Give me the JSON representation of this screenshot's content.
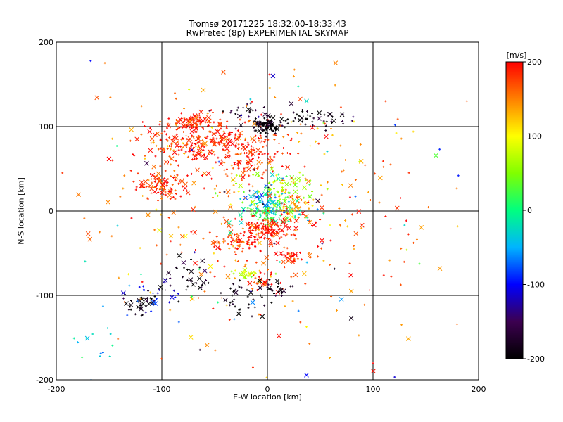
{
  "chart_data": {
    "type": "scatter",
    "title": "Tromsø 20171225 18:32:00-18:33:43",
    "subtitle": "RwPretec (8p) EXPERIMENTAL SKYMAP",
    "xlabel": "E-W location [km]",
    "ylabel": "N-S location [km]",
    "xlim": [
      -200,
      200
    ],
    "ylim": [
      -200,
      200
    ],
    "xticks": [
      "-200",
      "-100",
      "0",
      "100",
      "200"
    ],
    "yticks": [
      "-200",
      "-100",
      "0",
      "100",
      "200"
    ],
    "grid": true,
    "grid_lines_x": [
      -100,
      0,
      100
    ],
    "grid_lines_y": [
      -100,
      0,
      100
    ],
    "markers": [
      "+",
      "x"
    ],
    "colorbar": {
      "label": "[m/s]",
      "range": [
        -200,
        200
      ],
      "ticks": [
        "200",
        "100",
        "0",
        "-100",
        "-200"
      ],
      "colormap": [
        "#000000",
        "#3c0050",
        "#0000ff",
        "#00b4ff",
        "#00ff80",
        "#80ff00",
        "#ffff00",
        "#ff8000",
        "#ff0000"
      ]
    },
    "clusters": [
      {
        "x": -70,
        "y": 105,
        "sx": 8,
        "sy": 5,
        "n": 70,
        "v": 190
      },
      {
        "x": -50,
        "y": 80,
        "sx": 35,
        "sy": 18,
        "n": 260,
        "v": 190
      },
      {
        "x": -100,
        "y": 30,
        "sx": 14,
        "sy": 10,
        "n": 90,
        "v": 185
      },
      {
        "x": -15,
        "y": 60,
        "sx": 12,
        "sy": 15,
        "n": 60,
        "v": 185
      },
      {
        "x": -42,
        "y": 85,
        "sx": 5,
        "sy": 4,
        "n": 25,
        "v": 190
      },
      {
        "x": -75,
        "y": 80,
        "sx": 20,
        "sy": 12,
        "n": 60,
        "v": 170
      },
      {
        "x": 0,
        "y": 100,
        "sx": 7,
        "sy": 5,
        "n": 90,
        "v": -195
      },
      {
        "x": 45,
        "y": 110,
        "sx": 18,
        "sy": 6,
        "n": 45,
        "v": -195
      },
      {
        "x": -20,
        "y": 115,
        "sx": 15,
        "sy": 8,
        "n": 30,
        "v": -190
      },
      {
        "x": 10,
        "y": 25,
        "sx": 18,
        "sy": 12,
        "n": 90,
        "v": 60
      },
      {
        "x": 0,
        "y": 10,
        "sx": 10,
        "sy": 10,
        "n": 80,
        "v": -40
      },
      {
        "x": 5,
        "y": -5,
        "sx": 14,
        "sy": 7,
        "n": 60,
        "v": 20
      },
      {
        "x": 0,
        "y": -22,
        "sx": 14,
        "sy": 7,
        "n": 120,
        "v": 190
      },
      {
        "x": -25,
        "y": -35,
        "sx": 14,
        "sy": 6,
        "n": 90,
        "v": 190
      },
      {
        "x": 25,
        "y": 5,
        "sx": 8,
        "sy": 7,
        "n": 35,
        "v": 140
      },
      {
        "x": 20,
        "y": -55,
        "sx": 10,
        "sy": 5,
        "n": 35,
        "v": 185
      },
      {
        "x": -5,
        "y": -85,
        "sx": 8,
        "sy": 5,
        "n": 35,
        "v": 185
      },
      {
        "x": -20,
        "y": -75,
        "sx": 8,
        "sy": 4,
        "n": 25,
        "v": 80
      },
      {
        "x": -120,
        "y": -110,
        "sx": 10,
        "sy": 8,
        "n": 35,
        "v": -195
      },
      {
        "x": -80,
        "y": -75,
        "sx": 15,
        "sy": 12,
        "n": 35,
        "v": -195
      },
      {
        "x": -25,
        "y": -105,
        "sx": 12,
        "sy": 10,
        "n": 35,
        "v": -195
      },
      {
        "x": 10,
        "y": -95,
        "sx": 10,
        "sy": 8,
        "n": 25,
        "v": -195
      },
      {
        "x": -110,
        "y": -100,
        "sx": 15,
        "sy": 10,
        "n": 25,
        "v": -110
      },
      {
        "x": -170,
        "y": -160,
        "sx": 12,
        "sy": 25,
        "n": 15,
        "v": -40
      },
      {
        "x": 0,
        "y": 0,
        "sx": 90,
        "sy": 90,
        "n": 300,
        "v": 160
      },
      {
        "x": 0,
        "y": 0,
        "sx": 90,
        "sy": 90,
        "n": 100,
        "v": 0
      }
    ]
  }
}
